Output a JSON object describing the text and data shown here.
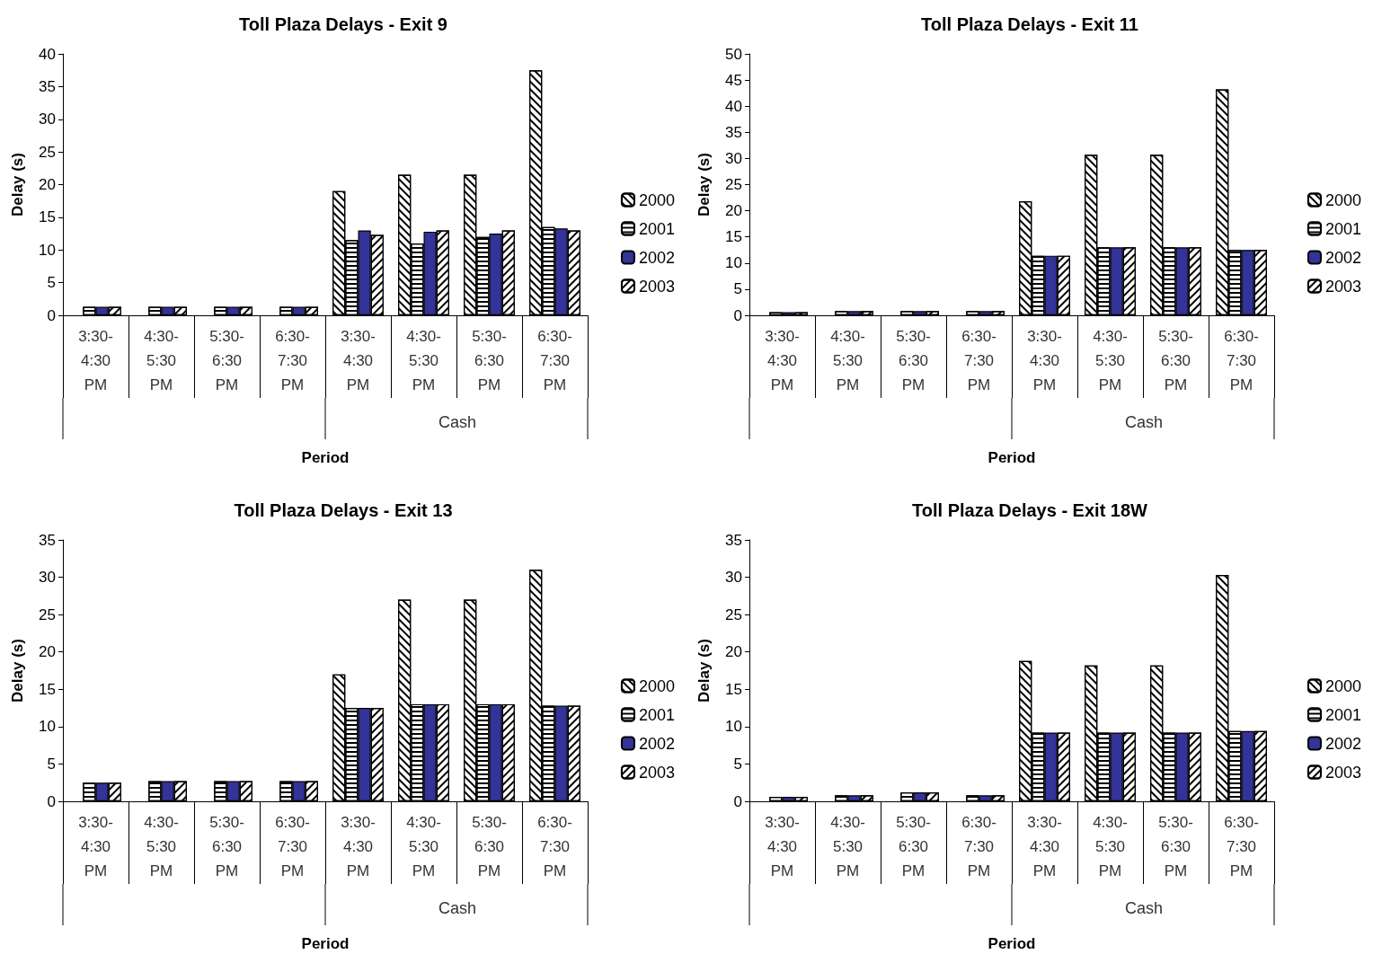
{
  "chart_data": [
    {
      "type": "bar",
      "title": "Toll Plaza Delays - Exit 9",
      "xlabel": "Period",
      "ylabel": "Delay (s)",
      "categories": [
        "3:30-4:30 PM",
        "4:30-5:30 PM",
        "5:30-6:30 PM",
        "6:30-7:30 PM",
        "3:30-4:30 PM",
        "4:30-5:30 PM",
        "5:30-6:30 PM",
        "6:30-7:30 PM"
      ],
      "annotations": [
        "Cash"
      ],
      "ylim": [
        0,
        40
      ],
      "yticks": [
        0,
        5,
        10,
        15,
        20,
        25,
        30,
        35,
        40
      ],
      "grid": false,
      "legend": "right",
      "series": [
        {
          "name": "2000",
          "color": "#ffffff",
          "values": [
            null,
            null,
            null,
            null,
            19,
            21.5,
            21.5,
            37.5
          ]
        },
        {
          "name": "2001",
          "color": "#ffffff",
          "values": [
            1.3,
            1.3,
            1.3,
            1.3,
            11.5,
            11,
            12,
            13.5
          ]
        },
        {
          "name": "2002",
          "color": "#333399",
          "values": [
            1.3,
            1.3,
            1.3,
            1.3,
            13,
            12.8,
            12.5,
            13.3
          ]
        },
        {
          "name": "2003",
          "color": "#ffffff",
          "values": [
            1.3,
            1.3,
            1.3,
            1.3,
            12.3,
            13,
            13,
            13
          ]
        }
      ]
    },
    {
      "type": "bar",
      "title": "Toll Plaza Delays - Exit 11",
      "xlabel": "Period",
      "ylabel": "Delay (s)",
      "categories": [
        "3:30-4:30 PM",
        "4:30-5:30 PM",
        "5:30-6:30 PM",
        "6:30-7:30 PM",
        "3:30-4:30 PM",
        "4:30-5:30 PM",
        "5:30-6:30 PM",
        "6:30-7:30 PM"
      ],
      "annotations": [
        "Cash"
      ],
      "ylim": [
        0,
        50
      ],
      "yticks": [
        0,
        5,
        10,
        15,
        20,
        25,
        30,
        35,
        40,
        45,
        50
      ],
      "grid": false,
      "legend": "right",
      "series": [
        {
          "name": "2000",
          "color": "#ffffff",
          "values": [
            null,
            null,
            null,
            null,
            21.8,
            30.7,
            30.7,
            43.2
          ]
        },
        {
          "name": "2001",
          "color": "#ffffff",
          "values": [
            0.6,
            0.8,
            0.8,
            0.8,
            11.4,
            13,
            13,
            12.5
          ]
        },
        {
          "name": "2002",
          "color": "#333399",
          "values": [
            0.6,
            0.8,
            0.8,
            0.8,
            11.4,
            13,
            13,
            12.5
          ]
        },
        {
          "name": "2003",
          "color": "#ffffff",
          "values": [
            0.6,
            0.8,
            0.8,
            0.8,
            11.4,
            13,
            13,
            12.5
          ]
        }
      ]
    },
    {
      "type": "bar",
      "title": "Toll Plaza Delays - Exit 13",
      "xlabel": "Period",
      "ylabel": "Delay (s)",
      "categories": [
        "3:30-4:30 PM",
        "4:30-5:30 PM",
        "5:30-6:30 PM",
        "6:30-7:30 PM",
        "3:30-4:30 PM",
        "4:30-5:30 PM",
        "5:30-6:30 PM",
        "6:30-7:30 PM"
      ],
      "annotations": [
        "Cash"
      ],
      "ylim": [
        0,
        35
      ],
      "yticks": [
        0,
        5,
        10,
        15,
        20,
        25,
        30,
        35
      ],
      "grid": false,
      "legend": "right",
      "series": [
        {
          "name": "2000",
          "color": "#ffffff",
          "values": [
            null,
            null,
            null,
            null,
            17,
            27,
            27,
            31
          ]
        },
        {
          "name": "2001",
          "color": "#ffffff",
          "values": [
            2.5,
            2.7,
            2.7,
            2.7,
            12.5,
            13,
            13,
            12.8
          ]
        },
        {
          "name": "2002",
          "color": "#333399",
          "values": [
            2.5,
            2.7,
            2.7,
            2.7,
            12.5,
            13,
            13,
            12.8
          ]
        },
        {
          "name": "2003",
          "color": "#ffffff",
          "values": [
            2.5,
            2.7,
            2.7,
            2.7,
            12.5,
            13,
            13,
            12.8
          ]
        }
      ]
    },
    {
      "type": "bar",
      "title": "Toll Plaza Delays - Exit 18W",
      "xlabel": "Period",
      "ylabel": "Delay (s)",
      "categories": [
        "3:30-4:30 PM",
        "4:30-5:30 PM",
        "5:30-6:30 PM",
        "6:30-7:30 PM",
        "3:30-4:30 PM",
        "4:30-5:30 PM",
        "5:30-6:30 PM",
        "6:30-7:30 PM"
      ],
      "annotations": [
        "Cash"
      ],
      "ylim": [
        0,
        35
      ],
      "yticks": [
        0,
        5,
        10,
        15,
        20,
        25,
        30,
        35
      ],
      "grid": false,
      "legend": "right",
      "series": [
        {
          "name": "2000",
          "color": "#ffffff",
          "values": [
            null,
            null,
            null,
            null,
            18.8,
            18.2,
            18.2,
            30.3
          ]
        },
        {
          "name": "2001",
          "color": "#ffffff",
          "values": [
            0.6,
            0.8,
            1.2,
            0.8,
            9.2,
            9.2,
            9.2,
            9.4
          ]
        },
        {
          "name": "2002",
          "color": "#333399",
          "values": [
            0.6,
            0.8,
            1.2,
            0.8,
            9.2,
            9.2,
            9.2,
            9.4
          ]
        },
        {
          "name": "2003",
          "color": "#ffffff",
          "values": [
            0.6,
            0.8,
            1.2,
            0.8,
            9.2,
            9.2,
            9.2,
            9.4
          ]
        }
      ]
    }
  ]
}
